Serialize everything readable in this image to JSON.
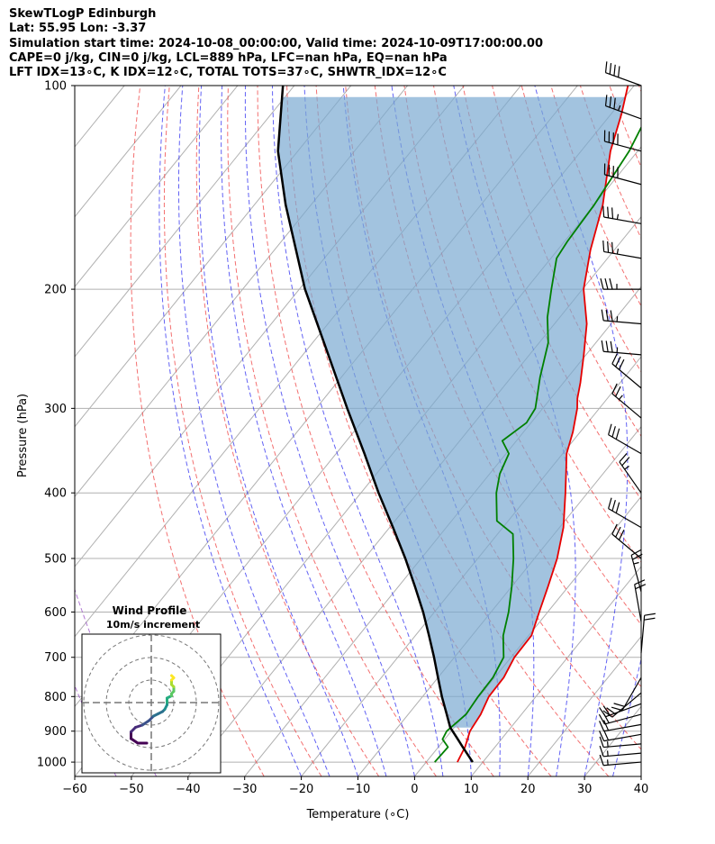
{
  "header": {
    "title": "SkewTLogP Edinburgh",
    "latlon": "Lat: 55.95   Lon: -3.37",
    "times": "Simulation start time: 2024-10-08_00:00:00, Valid time: 2024-10-09T17:00:00.00",
    "params": "CAPE=0 j/kg, CIN=0 j/kg, LCL=889 hPa, LFC=nan hPa, EQ=nan hPa",
    "indices": "LFT IDX=13∘C, K IDX=12∘C, TOTAL TOTS=37∘C, SHWTR_IDX=12∘C"
  },
  "chart_data": {
    "type": "line",
    "title": "SkewTLogP Edinburgh",
    "xlabel": "Temperature (∘C)",
    "ylabel": "Pressure (hPa)",
    "xlim": [
      -60,
      40
    ],
    "ylim": [
      1050,
      100
    ],
    "x_ticks": [
      "−60",
      "−50",
      "−40",
      "−30",
      "−20",
      "−10",
      "0",
      "10",
      "20",
      "30",
      "40"
    ],
    "x_tick_values": [
      -60,
      -50,
      -40,
      -30,
      -20,
      -10,
      0,
      10,
      20,
      30,
      40
    ],
    "y_ticks": [
      "100",
      "200",
      "300",
      "400",
      "500",
      "600",
      "700",
      "800",
      "900",
      "1000"
    ],
    "y_tick_values": [
      100,
      200,
      300,
      400,
      500,
      600,
      700,
      800,
      900,
      1000
    ],
    "skew_degrees_per_log_unit": 42,
    "series": [
      {
        "name": "temperature",
        "color": "#e60000",
        "points": [
          [
            1000,
            5.5
          ],
          [
            950,
            4.7
          ],
          [
            900,
            3.3
          ],
          [
            850,
            2.8
          ],
          [
            800,
            1.7
          ],
          [
            750,
            1.6
          ],
          [
            700,
            0.6
          ],
          [
            650,
            0.5
          ],
          [
            600,
            -1.5
          ],
          [
            550,
            -3.6
          ],
          [
            500,
            -6.0
          ],
          [
            450,
            -9.3
          ],
          [
            400,
            -13.9
          ],
          [
            375,
            -16.5
          ],
          [
            350,
            -19.3
          ],
          [
            325,
            -21.3
          ],
          [
            300,
            -23.9
          ],
          [
            290,
            -25.3
          ],
          [
            275,
            -27.0
          ],
          [
            250,
            -30.4
          ],
          [
            225,
            -34.3
          ],
          [
            200,
            -39.8
          ],
          [
            175,
            -44.2
          ],
          [
            150,
            -48.5
          ],
          [
            125,
            -54.8
          ],
          [
            110,
            -58.2
          ],
          [
            100,
            -61.1
          ]
        ]
      },
      {
        "name": "dewpoint",
        "color": "#008000",
        "points": [
          [
            1000,
            1.5
          ],
          [
            950,
            1.7
          ],
          [
            925,
            -0.4
          ],
          [
            900,
            -0.8
          ],
          [
            850,
            0.2
          ],
          [
            800,
            -0.2
          ],
          [
            750,
            -0.3
          ],
          [
            700,
            -1.3
          ],
          [
            650,
            -4.5
          ],
          [
            600,
            -6.9
          ],
          [
            550,
            -10.0
          ],
          [
            500,
            -13.7
          ],
          [
            460,
            -17.3
          ],
          [
            440,
            -22.0
          ],
          [
            400,
            -26.1
          ],
          [
            375,
            -28.2
          ],
          [
            350,
            -29.5
          ],
          [
            335,
            -32.5
          ],
          [
            315,
            -30.8
          ],
          [
            300,
            -31.3
          ],
          [
            270,
            -34.9
          ],
          [
            240,
            -38.4
          ],
          [
            220,
            -42.2
          ],
          [
            200,
            -45.5
          ],
          [
            180,
            -49.0
          ],
          [
            170,
            -49.5
          ],
          [
            150,
            -50.0
          ],
          [
            125,
            -51.5
          ],
          [
            110,
            -53.5
          ],
          [
            100,
            -55.0
          ]
        ]
      },
      {
        "name": "parcel",
        "color": "#000000",
        "points": [
          [
            1000,
            8.2
          ],
          [
            950,
            4.3
          ],
          [
            920,
            1.9
          ],
          [
            889,
            -0.7
          ],
          [
            850,
            -3.2
          ],
          [
            800,
            -6.6
          ],
          [
            750,
            -10.0
          ],
          [
            700,
            -13.6
          ],
          [
            650,
            -17.6
          ],
          [
            600,
            -22.0
          ],
          [
            550,
            -27.1
          ],
          [
            500,
            -32.8
          ],
          [
            450,
            -39.4
          ],
          [
            400,
            -46.9
          ],
          [
            350,
            -55.0
          ],
          [
            300,
            -64.5
          ],
          [
            250,
            -75.5
          ],
          [
            200,
            -89.0
          ],
          [
            150,
            -104.5
          ],
          [
            125,
            -113.5
          ],
          [
            100,
            -122.0
          ]
        ]
      }
    ],
    "lcl_hpa": 889,
    "dry_adiabats_theta_c": [
      -30,
      -20,
      -10,
      0,
      10,
      20,
      30,
      40,
      50,
      60,
      70,
      80,
      90,
      100,
      110,
      120,
      130,
      140
    ],
    "moist_adiabats_start_c": [
      -20,
      -15,
      -10,
      -5,
      0,
      5,
      10,
      15,
      20,
      25,
      30,
      35
    ],
    "wind_barbs": [
      {
        "p": 100,
        "dir": 290,
        "kt": 40
      },
      {
        "p": 112,
        "dir": 290,
        "kt": 38
      },
      {
        "p": 125,
        "dir": 285,
        "kt": 40
      },
      {
        "p": 140,
        "dir": 285,
        "kt": 40
      },
      {
        "p": 160,
        "dir": 280,
        "kt": 38
      },
      {
        "p": 180,
        "dir": 280,
        "kt": 35
      },
      {
        "p": 200,
        "dir": 270,
        "kt": 35
      },
      {
        "p": 225,
        "dir": 275,
        "kt": 35
      },
      {
        "p": 250,
        "dir": 275,
        "kt": 36
      },
      {
        "p": 280,
        "dir": 310,
        "kt": 30
      },
      {
        "p": 310,
        "dir": 310,
        "kt": 25
      },
      {
        "p": 350,
        "dir": 300,
        "kt": 32
      },
      {
        "p": 400,
        "dir": 325,
        "kt": 25
      },
      {
        "p": 450,
        "dir": 300,
        "kt": 30
      },
      {
        "p": 500,
        "dir": 310,
        "kt": 30
      },
      {
        "p": 560,
        "dir": 345,
        "kt": 25
      },
      {
        "p": 620,
        "dir": 350,
        "kt": 20
      },
      {
        "p": 690,
        "dir": 5,
        "kt": 20
      },
      {
        "p": 750,
        "dir": 210,
        "kt": 20
      },
      {
        "p": 790,
        "dir": 230,
        "kt": 20
      },
      {
        "p": 820,
        "dir": 250,
        "kt": 20
      },
      {
        "p": 850,
        "dir": 255,
        "kt": 20
      },
      {
        "p": 880,
        "dir": 260,
        "kt": 20
      },
      {
        "p": 910,
        "dir": 260,
        "kt": 20
      },
      {
        "p": 940,
        "dir": 265,
        "kt": 18
      },
      {
        "p": 970,
        "dir": 265,
        "kt": 16
      },
      {
        "p": 1000,
        "dir": 265,
        "kt": 15
      }
    ],
    "hodograph": {
      "title": "Wind Profile",
      "subtitle": "10m/s increment",
      "ring_increment_ms": 10,
      "rings": 3,
      "trace_uv_ms": [
        [
          -2,
          -18
        ],
        [
          -6,
          -18
        ],
        [
          -9,
          -16
        ],
        [
          -9,
          -13
        ],
        [
          -7,
          -11
        ],
        [
          -4,
          -10
        ],
        [
          -1,
          -8
        ],
        [
          1,
          -6
        ],
        [
          3,
          -5
        ],
        [
          5,
          -4
        ],
        [
          6,
          -3
        ],
        [
          7,
          -1
        ],
        [
          7,
          0
        ],
        [
          7,
          2
        ],
        [
          9,
          3
        ],
        [
          9,
          4
        ],
        [
          10,
          5
        ],
        [
          10,
          7
        ],
        [
          9,
          8
        ],
        [
          9,
          10
        ],
        [
          10,
          11
        ],
        [
          9,
          12
        ]
      ]
    }
  }
}
